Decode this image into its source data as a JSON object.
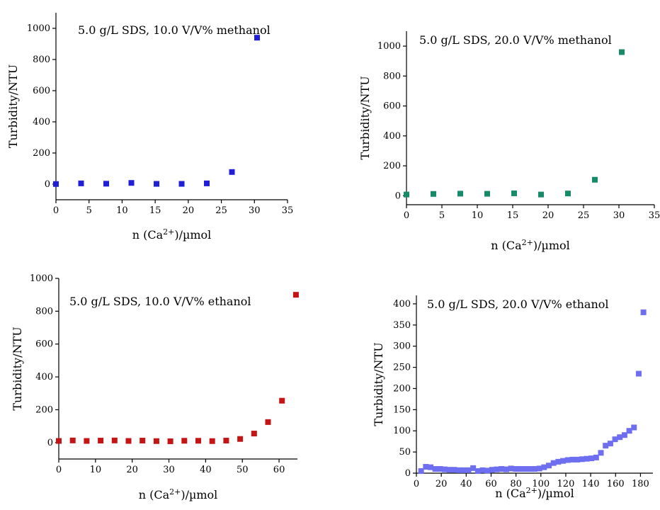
{
  "chart_data": [
    {
      "type": "scatter",
      "title": "5.0 g/L SDS, 10.0 V/V% methanol",
      "xlabel": "n (Ca2+)/µmol",
      "ylabel": "Turbidity/NTU",
      "xlim": [
        0,
        35
      ],
      "ylim": [
        -100,
        1100
      ],
      "xticks": [
        0,
        5,
        10,
        15,
        20,
        25,
        30,
        35
      ],
      "yticks": [
        0,
        200,
        400,
        600,
        800,
        1000
      ],
      "color": "#1f1fd8",
      "x": [
        0,
        3.8,
        7.6,
        11.4,
        15.2,
        19.0,
        22.8,
        26.6,
        30.4
      ],
      "y": [
        1,
        5,
        3,
        8,
        2,
        2,
        5,
        78,
        940
      ]
    },
    {
      "type": "scatter",
      "title": "5.0 g/L SDS, 20.0 V/V% methanol",
      "xlabel": "n (Ca2+)/µmol",
      "ylabel": "Turbidity/NTU",
      "xlim": [
        0,
        35
      ],
      "ylim": [
        -60,
        1100
      ],
      "xticks": [
        0,
        5,
        10,
        15,
        20,
        25,
        30,
        35
      ],
      "yticks": [
        0,
        200,
        400,
        600,
        800,
        1000
      ],
      "color": "#178a6a",
      "x": [
        0,
        3.8,
        7.6,
        11.4,
        15.2,
        19.0,
        22.8,
        26.6,
        30.4
      ],
      "y": [
        8,
        12,
        14,
        13,
        16,
        8,
        15,
        107,
        960
      ]
    },
    {
      "type": "scatter",
      "title": "5.0 g/L SDS, 10.0 V/V% ethanol",
      "xlabel": "n (Ca2+)/µmol",
      "ylabel": "Turbidity/NTU",
      "xlim": [
        0,
        65
      ],
      "ylim": [
        -100,
        1000
      ],
      "xticks": [
        0,
        10,
        20,
        30,
        40,
        50,
        60
      ],
      "yticks": [
        0,
        200,
        400,
        600,
        800,
        1000
      ],
      "color": "#c41414",
      "x": [
        0,
        3.8,
        7.6,
        11.4,
        15.2,
        19.0,
        22.8,
        26.6,
        30.4,
        34.2,
        38.0,
        41.8,
        45.6,
        49.4,
        53.2,
        57.0,
        60.8,
        64.6
      ],
      "y": [
        10,
        13,
        10,
        12,
        13,
        10,
        12,
        9,
        8,
        11,
        11,
        9,
        12,
        22,
        55,
        125,
        255,
        900
      ]
    },
    {
      "type": "scatter",
      "title": "5.0 g/L SDS, 20.0 V/V% ethanol",
      "xlabel": "n (Ca2+)/µmol",
      "ylabel": "Turbidity/NTU",
      "xlim": [
        0,
        190
      ],
      "ylim": [
        0,
        420
      ],
      "xticks": [
        0,
        20,
        40,
        60,
        80,
        100,
        120,
        140,
        160,
        180
      ],
      "yticks": [
        0,
        50,
        100,
        150,
        200,
        250,
        300,
        350,
        400
      ],
      "color": "#6e6ef0",
      "x": [
        3.8,
        7.6,
        11.4,
        15.2,
        19.0,
        22.8,
        26.6,
        30.4,
        34.2,
        38.0,
        41.8,
        45.6,
        49.4,
        53.2,
        57.0,
        60.8,
        64.6,
        68.4,
        72.2,
        76.0,
        79.8,
        83.6,
        87.4,
        91.2,
        95.0,
        98.8,
        102.6,
        106.4,
        110.2,
        114.0,
        117.8,
        121.6,
        125.4,
        129.2,
        133.0,
        136.8,
        140.6,
        144.4,
        148.2,
        152.0,
        155.8,
        159.6,
        163.4,
        167.2,
        171.0,
        174.8,
        178.6,
        182.4
      ],
      "y": [
        5,
        15,
        14,
        10,
        10,
        9,
        8,
        8,
        7,
        7,
        7,
        12,
        5,
        7,
        6,
        8,
        9,
        10,
        9,
        11,
        10,
        10,
        10,
        10,
        10,
        11,
        14,
        18,
        24,
        27,
        29,
        31,
        32,
        32,
        33,
        34,
        35,
        37,
        48,
        65,
        70,
        80,
        85,
        90,
        100,
        108,
        235,
        380
      ]
    }
  ]
}
